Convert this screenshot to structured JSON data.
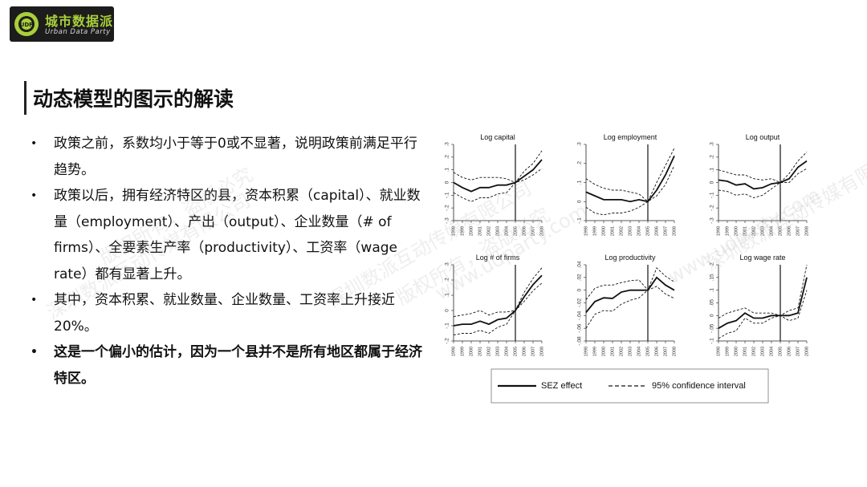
{
  "logo": {
    "name_cn": "城市数据派",
    "name_en": "Urban Data Party",
    "mark_text": "UDP"
  },
  "slide": {
    "title": "动态模型的图示的解读",
    "bullets": [
      {
        "text": "政策之前，系数均小于等于0或不显著，说明政策前满足平行趋势。",
        "bold": false
      },
      {
        "text": "政策以后，拥有经济特区的县，资本积累（capital）、就业数量（employment）、产出（output）、企业数量（# of firms）、全要素生产率（productivity）、工资率（wage rate）都有显著上升。",
        "bold": false
      },
      {
        "text": "其中，资本积累、就业数量、企业数量、工资率上升接近20%。",
        "bold": false
      },
      {
        "text": "这是一个偏小的估计，因为一个县并不是所有地区都属于经济特区。",
        "bold": true
      }
    ]
  },
  "watermark": {
    "lines": [
      "深圳数派互动传媒有限公司",
      "版权所有，盗版必究",
      "www.udparty.com"
    ]
  },
  "chart_data": [
    {
      "type": "line",
      "title": "Log capital",
      "x": [
        1998,
        1999,
        2000,
        2001,
        2002,
        2003,
        2004,
        2005,
        2006,
        2007,
        2008
      ],
      "ylim": [
        -0.3,
        0.3
      ],
      "yticks": [
        -0.3,
        -0.2,
        -0.1,
        0,
        0.1,
        0.2,
        0.3
      ],
      "vline": 2005,
      "series": [
        {
          "values": [
            0.0,
            -0.04,
            -0.07,
            -0.04,
            -0.04,
            -0.02,
            -0.02,
            0.0,
            0.05,
            0.1,
            0.18
          ]
        },
        {
          "values": [
            0.08,
            0.04,
            0.02,
            0.04,
            0.04,
            0.04,
            0.03,
            0.0,
            0.09,
            0.15,
            0.25
          ]
        },
        {
          "values": [
            -0.08,
            -0.12,
            -0.15,
            -0.12,
            -0.12,
            -0.09,
            -0.08,
            0.0,
            0.02,
            0.06,
            0.11
          ]
        }
      ]
    },
    {
      "type": "line",
      "title": "Log employment",
      "x": [
        1998,
        1999,
        2000,
        2001,
        2002,
        2003,
        2004,
        2005,
        2006,
        2007,
        2008
      ],
      "ylim": [
        -0.1,
        0.3
      ],
      "yticks": [
        -0.1,
        0,
        0.1,
        0.2,
        0.3
      ],
      "vline": 2005,
      "series": [
        {
          "values": [
            0.05,
            0.03,
            0.01,
            0.01,
            0.01,
            0.0,
            0.01,
            0.0,
            0.06,
            0.14,
            0.24
          ]
        },
        {
          "values": [
            0.12,
            0.09,
            0.07,
            0.06,
            0.06,
            0.05,
            0.04,
            0.0,
            0.1,
            0.19,
            0.28
          ]
        },
        {
          "values": [
            -0.03,
            -0.06,
            -0.07,
            -0.06,
            -0.06,
            -0.05,
            -0.03,
            0.0,
            0.03,
            0.09,
            0.19
          ]
        }
      ]
    },
    {
      "type": "line",
      "title": "Log output",
      "x": [
        1998,
        1999,
        2000,
        2001,
        2002,
        2003,
        2004,
        2005,
        2006,
        2007,
        2008
      ],
      "ylim": [
        -0.3,
        0.3
      ],
      "yticks": [
        -0.3,
        -0.2,
        -0.1,
        0,
        0.1,
        0.2,
        0.3
      ],
      "vline": 2005,
      "series": [
        {
          "values": [
            0.02,
            0.01,
            -0.02,
            -0.01,
            -0.05,
            -0.04,
            -0.01,
            0.0,
            0.03,
            0.12,
            0.17
          ]
        },
        {
          "values": [
            0.1,
            0.08,
            0.06,
            0.06,
            0.03,
            0.02,
            0.03,
            0.0,
            0.07,
            0.17,
            0.24
          ]
        },
        {
          "values": [
            -0.06,
            -0.07,
            -0.1,
            -0.09,
            -0.12,
            -0.1,
            -0.05,
            0.0,
            0.0,
            0.07,
            0.11
          ]
        }
      ]
    },
    {
      "type": "line",
      "title": "Log # of firms",
      "x": [
        1998,
        1999,
        2000,
        2001,
        2002,
        2003,
        2004,
        2005,
        2006,
        2007,
        2008
      ],
      "ylim": [
        -0.2,
        0.3
      ],
      "yticks": [
        -0.2,
        -0.1,
        0,
        0.1,
        0.2,
        0.3
      ],
      "vline": 2005,
      "series": [
        {
          "values": [
            -0.1,
            -0.09,
            -0.09,
            -0.07,
            -0.09,
            -0.06,
            -0.05,
            0.0,
            0.09,
            0.17,
            0.23
          ]
        },
        {
          "values": [
            -0.04,
            -0.03,
            -0.02,
            0.0,
            -0.03,
            -0.01,
            -0.01,
            0.0,
            0.12,
            0.21,
            0.28
          ]
        },
        {
          "values": [
            -0.16,
            -0.15,
            -0.15,
            -0.13,
            -0.15,
            -0.11,
            -0.09,
            0.0,
            0.06,
            0.13,
            0.18
          ]
        }
      ]
    },
    {
      "type": "line",
      "title": "Log productivity",
      "x": [
        1998,
        1999,
        2000,
        2001,
        2002,
        2003,
        2004,
        2005,
        2006,
        2007,
        2008
      ],
      "ylim": [
        -0.08,
        0.04
      ],
      "yticks": [
        -0.08,
        -0.06,
        -0.04,
        -0.02,
        0,
        0.02,
        0.04
      ],
      "vline": 2005,
      "series": [
        {
          "values": [
            -0.035,
            -0.018,
            -0.012,
            -0.013,
            -0.003,
            0.0,
            0.0,
            0.0,
            0.02,
            0.008,
            0.0
          ]
        },
        {
          "values": [
            -0.015,
            0.003,
            0.008,
            0.008,
            0.012,
            0.015,
            0.016,
            0.0,
            0.035,
            0.022,
            0.013
          ]
        },
        {
          "values": [
            -0.06,
            -0.038,
            -0.032,
            -0.033,
            -0.022,
            -0.016,
            -0.012,
            0.0,
            0.006,
            -0.006,
            -0.013
          ]
        }
      ]
    },
    {
      "type": "line",
      "title": "Log wage rate",
      "x": [
        1998,
        1999,
        2000,
        2001,
        2002,
        2003,
        2004,
        2005,
        2006,
        2007,
        2008
      ],
      "ylim": [
        -0.1,
        0.2
      ],
      "yticks": [
        -0.1,
        -0.05,
        0,
        0.05,
        0.1,
        0.15,
        0.2
      ],
      "ytick_labels": [
        "-.1",
        "-.05",
        "0",
        ".05",
        ".1",
        ".15",
        ".2"
      ],
      "vline": 2005,
      "series": [
        {
          "values": [
            -0.05,
            -0.03,
            -0.02,
            0.01,
            -0.01,
            -0.01,
            0.0,
            0.0,
            0.0,
            0.01,
            0.15
          ]
        },
        {
          "values": [
            -0.01,
            0.01,
            0.02,
            0.03,
            0.01,
            0.01,
            0.01,
            0.0,
            0.02,
            0.03,
            0.2
          ]
        },
        {
          "values": [
            -0.09,
            -0.07,
            -0.06,
            -0.01,
            -0.03,
            -0.03,
            -0.01,
            0.0,
            -0.02,
            -0.01,
            0.1
          ]
        }
      ]
    }
  ],
  "legend": {
    "solid_label": "SEZ effect",
    "dashed_label": "95% confidence interval"
  }
}
